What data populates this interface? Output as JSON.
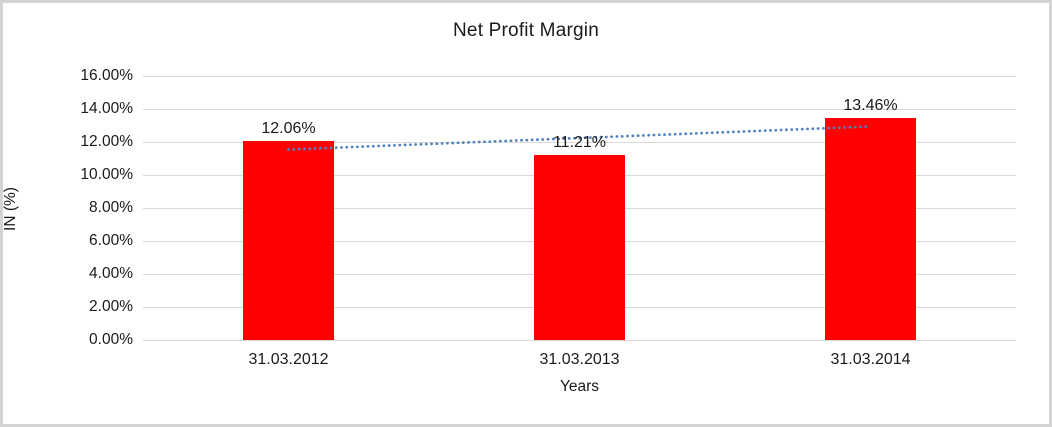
{
  "chart_data": {
    "type": "bar",
    "title": "Net Profit Margin",
    "categories": [
      "31.03.2012",
      "31.03.2013",
      "31.03.2014"
    ],
    "values": [
      12.06,
      11.21,
      13.46
    ],
    "value_labels": [
      "12.06%",
      "11.21%",
      "13.46%"
    ],
    "xlabel": "Years",
    "ylabel": "IN (%)",
    "ylim": [
      0,
      16
    ],
    "ytick_step": 2,
    "ytick_labels": [
      "0.00%",
      "2.00%",
      "4.00%",
      "6.00%",
      "8.00%",
      "10.00%",
      "12.00%",
      "14.00%",
      "16.00%"
    ],
    "grid": true,
    "legend": "none",
    "bar_color": "#ff0000",
    "gridline_color": "#d9d9d9",
    "trendline": {
      "type": "linear",
      "style": "dotted",
      "color": "#4f81bd"
    }
  },
  "frame": {
    "background_color": "#ffffff",
    "border_color": "#d4d4d4"
  }
}
